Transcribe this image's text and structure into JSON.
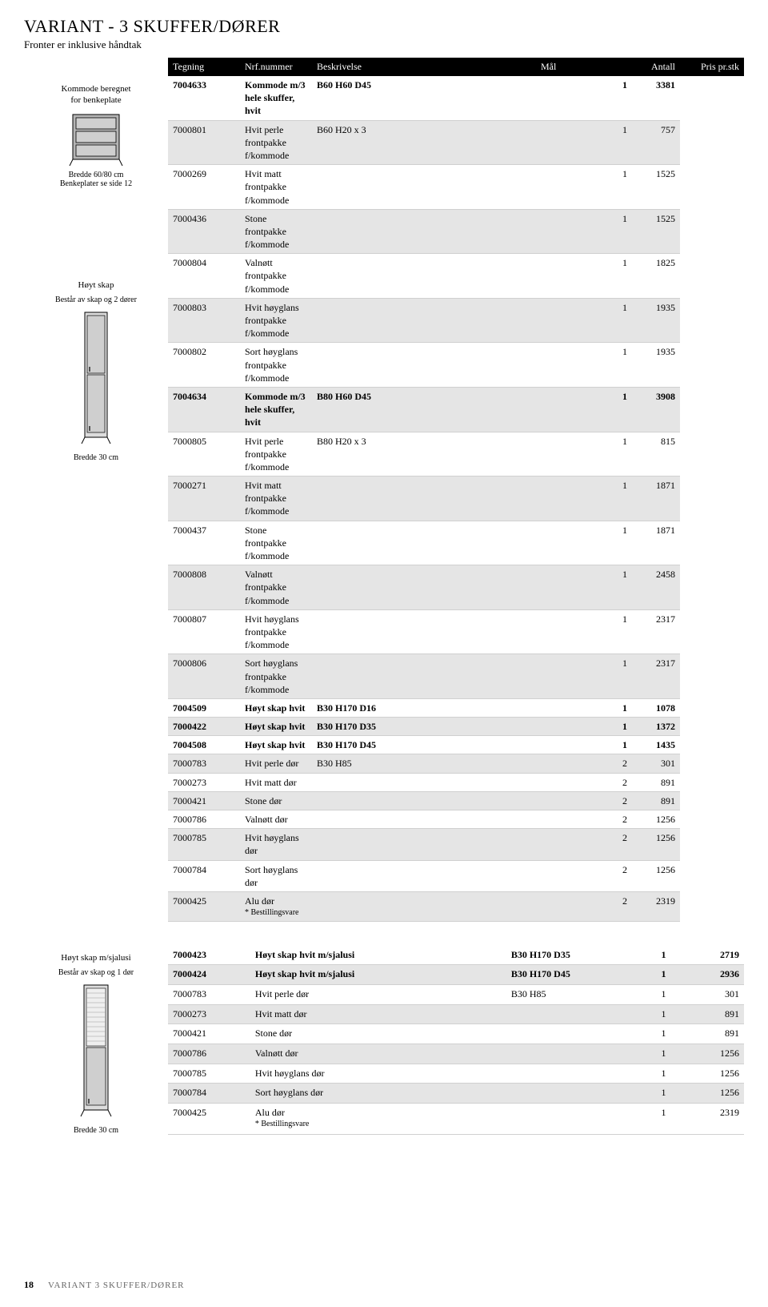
{
  "title": "VARIANT - 3 SKUFFER/DØRER",
  "subtitle": "Fronter er inklusive håndtak",
  "columns": [
    "Tegning",
    "Nrf.nummer",
    "Beskrivelse",
    "Mål",
    "Antall",
    "Pris pr.stk"
  ],
  "left_groups": [
    {
      "desc": "Kommode beregnet\nfor benkeplate",
      "caption": "Bredde 60/80 cm",
      "sub": "Benkeplater se side 12",
      "icon": "kommode"
    },
    {
      "desc": "Høyt skap",
      "sub": "Består av skap og 2 dører",
      "caption_below": "Bredde 30 cm",
      "icon": "tall"
    }
  ],
  "rows": [
    {
      "shaded": false,
      "bold": true,
      "nr": "7004633",
      "besk": "Kommode m/3 hele skuffer, hvit",
      "mal": "B60 H60 D45",
      "ant": "1",
      "pris": "3381"
    },
    {
      "shaded": true,
      "bold": false,
      "nr": "7000801",
      "besk": "Hvit perle frontpakke f/kommode",
      "mal": "B60 H20 x 3",
      "ant": "1",
      "pris": "757"
    },
    {
      "shaded": false,
      "bold": false,
      "nr": "7000269",
      "besk": "Hvit matt frontpakke f/kommode",
      "mal": "",
      "ant": "1",
      "pris": "1525"
    },
    {
      "shaded": true,
      "bold": false,
      "nr": "7000436",
      "besk": "Stone frontpakke f/kommode",
      "mal": "",
      "ant": "1",
      "pris": "1525"
    },
    {
      "shaded": false,
      "bold": false,
      "nr": "7000804",
      "besk": "Valnøtt frontpakke f/kommode",
      "mal": "",
      "ant": "1",
      "pris": "1825"
    },
    {
      "shaded": true,
      "bold": false,
      "nr": "7000803",
      "besk": "Hvit høyglans frontpakke f/kommode",
      "mal": "",
      "ant": "1",
      "pris": "1935"
    },
    {
      "shaded": false,
      "bold": false,
      "nr": "7000802",
      "besk": "Sort høyglans frontpakke f/kommode",
      "mal": "",
      "ant": "1",
      "pris": "1935"
    },
    {
      "shaded": true,
      "bold": true,
      "nr": "7004634",
      "besk": "Kommode m/3 hele skuffer, hvit",
      "mal": "B80 H60 D45",
      "ant": "1",
      "pris": "3908"
    },
    {
      "shaded": false,
      "bold": false,
      "nr": "7000805",
      "besk": "Hvit perle frontpakke f/kommode",
      "mal": "B80 H20 x 3",
      "ant": "1",
      "pris": "815"
    },
    {
      "shaded": true,
      "bold": false,
      "nr": "7000271",
      "besk": "Hvit matt frontpakke f/kommode",
      "mal": "",
      "ant": "1",
      "pris": "1871"
    },
    {
      "shaded": false,
      "bold": false,
      "nr": "7000437",
      "besk": "Stone frontpakke f/kommode",
      "mal": "",
      "ant": "1",
      "pris": "1871"
    },
    {
      "shaded": true,
      "bold": false,
      "nr": "7000808",
      "besk": "Valnøtt frontpakke f/kommode",
      "mal": "",
      "ant": "1",
      "pris": "2458"
    },
    {
      "shaded": false,
      "bold": false,
      "nr": "7000807",
      "besk": "Hvit høyglans frontpakke f/kommode",
      "mal": "",
      "ant": "1",
      "pris": "2317"
    },
    {
      "shaded": true,
      "bold": false,
      "nr": "7000806",
      "besk": "Sort høyglans frontpakke f/kommode",
      "mal": "",
      "ant": "1",
      "pris": "2317"
    },
    {
      "shaded": false,
      "bold": true,
      "nr": "7004509",
      "besk": "Høyt skap hvit",
      "mal": "B30 H170 D16",
      "ant": "1",
      "pris": "1078"
    },
    {
      "shaded": true,
      "bold": true,
      "nr": "7000422",
      "besk": "Høyt skap hvit",
      "mal": "B30 H170 D35",
      "ant": "1",
      "pris": "1372"
    },
    {
      "shaded": false,
      "bold": true,
      "nr": "7004508",
      "besk": "Høyt skap hvit",
      "mal": "B30 H170 D45",
      "ant": "1",
      "pris": "1435"
    },
    {
      "shaded": true,
      "bold": false,
      "nr": "7000783",
      "besk": "Hvit perle dør",
      "mal": "B30 H85",
      "ant": "2",
      "pris": "301"
    },
    {
      "shaded": false,
      "bold": false,
      "nr": "7000273",
      "besk": "Hvit matt dør",
      "mal": "",
      "ant": "2",
      "pris": "891"
    },
    {
      "shaded": true,
      "bold": false,
      "nr": "7000421",
      "besk": "Stone dør",
      "mal": "",
      "ant": "2",
      "pris": "891"
    },
    {
      "shaded": false,
      "bold": false,
      "nr": "7000786",
      "besk": "Valnøtt dør",
      "mal": "",
      "ant": "2",
      "pris": "1256"
    },
    {
      "shaded": true,
      "bold": false,
      "nr": "7000785",
      "besk": "Hvit høyglans dør",
      "mal": "",
      "ant": "2",
      "pris": "1256"
    },
    {
      "shaded": false,
      "bold": false,
      "nr": "7000784",
      "besk": "Sort høyglans dør",
      "mal": "",
      "ant": "2",
      "pris": "1256"
    },
    {
      "shaded": true,
      "bold": false,
      "nr": "7000425",
      "besk": "Alu dør",
      "foot": "* Bestillingsvare",
      "mal": "",
      "ant": "2",
      "pris": "2319"
    }
  ],
  "second_left": {
    "desc": "Høyt skap m/sjalusi",
    "sub": "Består av skap og 1 dør",
    "caption_below": "Bredde 30 cm",
    "icon": "sjalusi"
  },
  "rows2": [
    {
      "shaded": false,
      "bold": true,
      "nr": "7000423",
      "besk": "Høyt skap hvit m/sjalusi",
      "mal": "B30 H170 D35",
      "ant": "1",
      "pris": "2719"
    },
    {
      "shaded": true,
      "bold": true,
      "nr": "7000424",
      "besk": "Høyt skap hvit m/sjalusi",
      "mal": "B30 H170 D45",
      "ant": "1",
      "pris": "2936"
    },
    {
      "shaded": false,
      "bold": false,
      "nr": "7000783",
      "besk": "Hvit perle dør",
      "mal": "B30 H85",
      "ant": "1",
      "pris": "301"
    },
    {
      "shaded": true,
      "bold": false,
      "nr": "7000273",
      "besk": "Hvit matt dør",
      "mal": "",
      "ant": "1",
      "pris": "891"
    },
    {
      "shaded": false,
      "bold": false,
      "nr": "7000421",
      "besk": "Stone dør",
      "mal": "",
      "ant": "1",
      "pris": "891"
    },
    {
      "shaded": true,
      "bold": false,
      "nr": "7000786",
      "besk": "Valnøtt dør",
      "mal": "",
      "ant": "1",
      "pris": "1256"
    },
    {
      "shaded": false,
      "bold": false,
      "nr": "7000785",
      "besk": "Hvit høyglans dør",
      "mal": "",
      "ant": "1",
      "pris": "1256"
    },
    {
      "shaded": true,
      "bold": false,
      "nr": "7000784",
      "besk": "Sort høyglans dør",
      "mal": "",
      "ant": "1",
      "pris": "1256"
    },
    {
      "shaded": false,
      "bold": false,
      "nr": "7000425",
      "besk": "Alu dør",
      "foot": "* Bestillingsvare",
      "mal": "",
      "ant": "1",
      "pris": "2319"
    }
  ],
  "footer": {
    "page": "18",
    "text": "VARIANT 3 SKUFFER/DØRER"
  }
}
